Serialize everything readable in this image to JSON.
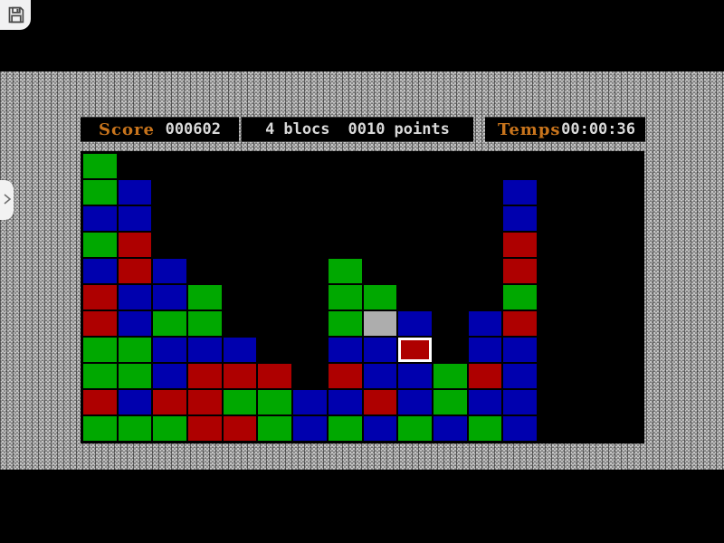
{
  "hud": {
    "score": {
      "label": "Score",
      "value": "000602"
    },
    "blocks": {
      "count": "4",
      "count_label": "blocs",
      "points": "0010",
      "points_label": "points"
    },
    "time": {
      "label": "Temps",
      "value": "00:00:36"
    }
  },
  "icons": {
    "save": "floppy-disk-icon",
    "drawer": "chevron-right-icon"
  },
  "colors": {
    "green": "#00a800",
    "blue": "#0000ae",
    "red": "#ae0000",
    "gray": "#adadad",
    "board_bg": "#000000",
    "label_orange": "#c8741c",
    "value_text": "#d9d9d9",
    "selection": "#ffffff"
  },
  "board": {
    "cols": 16,
    "rows": 11,
    "legend": {
      "G": "green",
      "B": "blue",
      "R": "red",
      "Y": "gray",
      ".": "empty"
    },
    "grid": [
      "G...............",
      "GB..........B...",
      "BB..........B...",
      "GR..........R...",
      "BRB....G....R...",
      "RBBG...GG...G...",
      "RBGG...GYB.BR...",
      "GGBBB..BBR.BB...",
      "GGBRRR.RBBGRB...",
      "RBRRGGBBRBGBB...",
      "GGGRRGBGBGBGB..."
    ],
    "selected": {
      "row": 7,
      "col": 9
    }
  }
}
